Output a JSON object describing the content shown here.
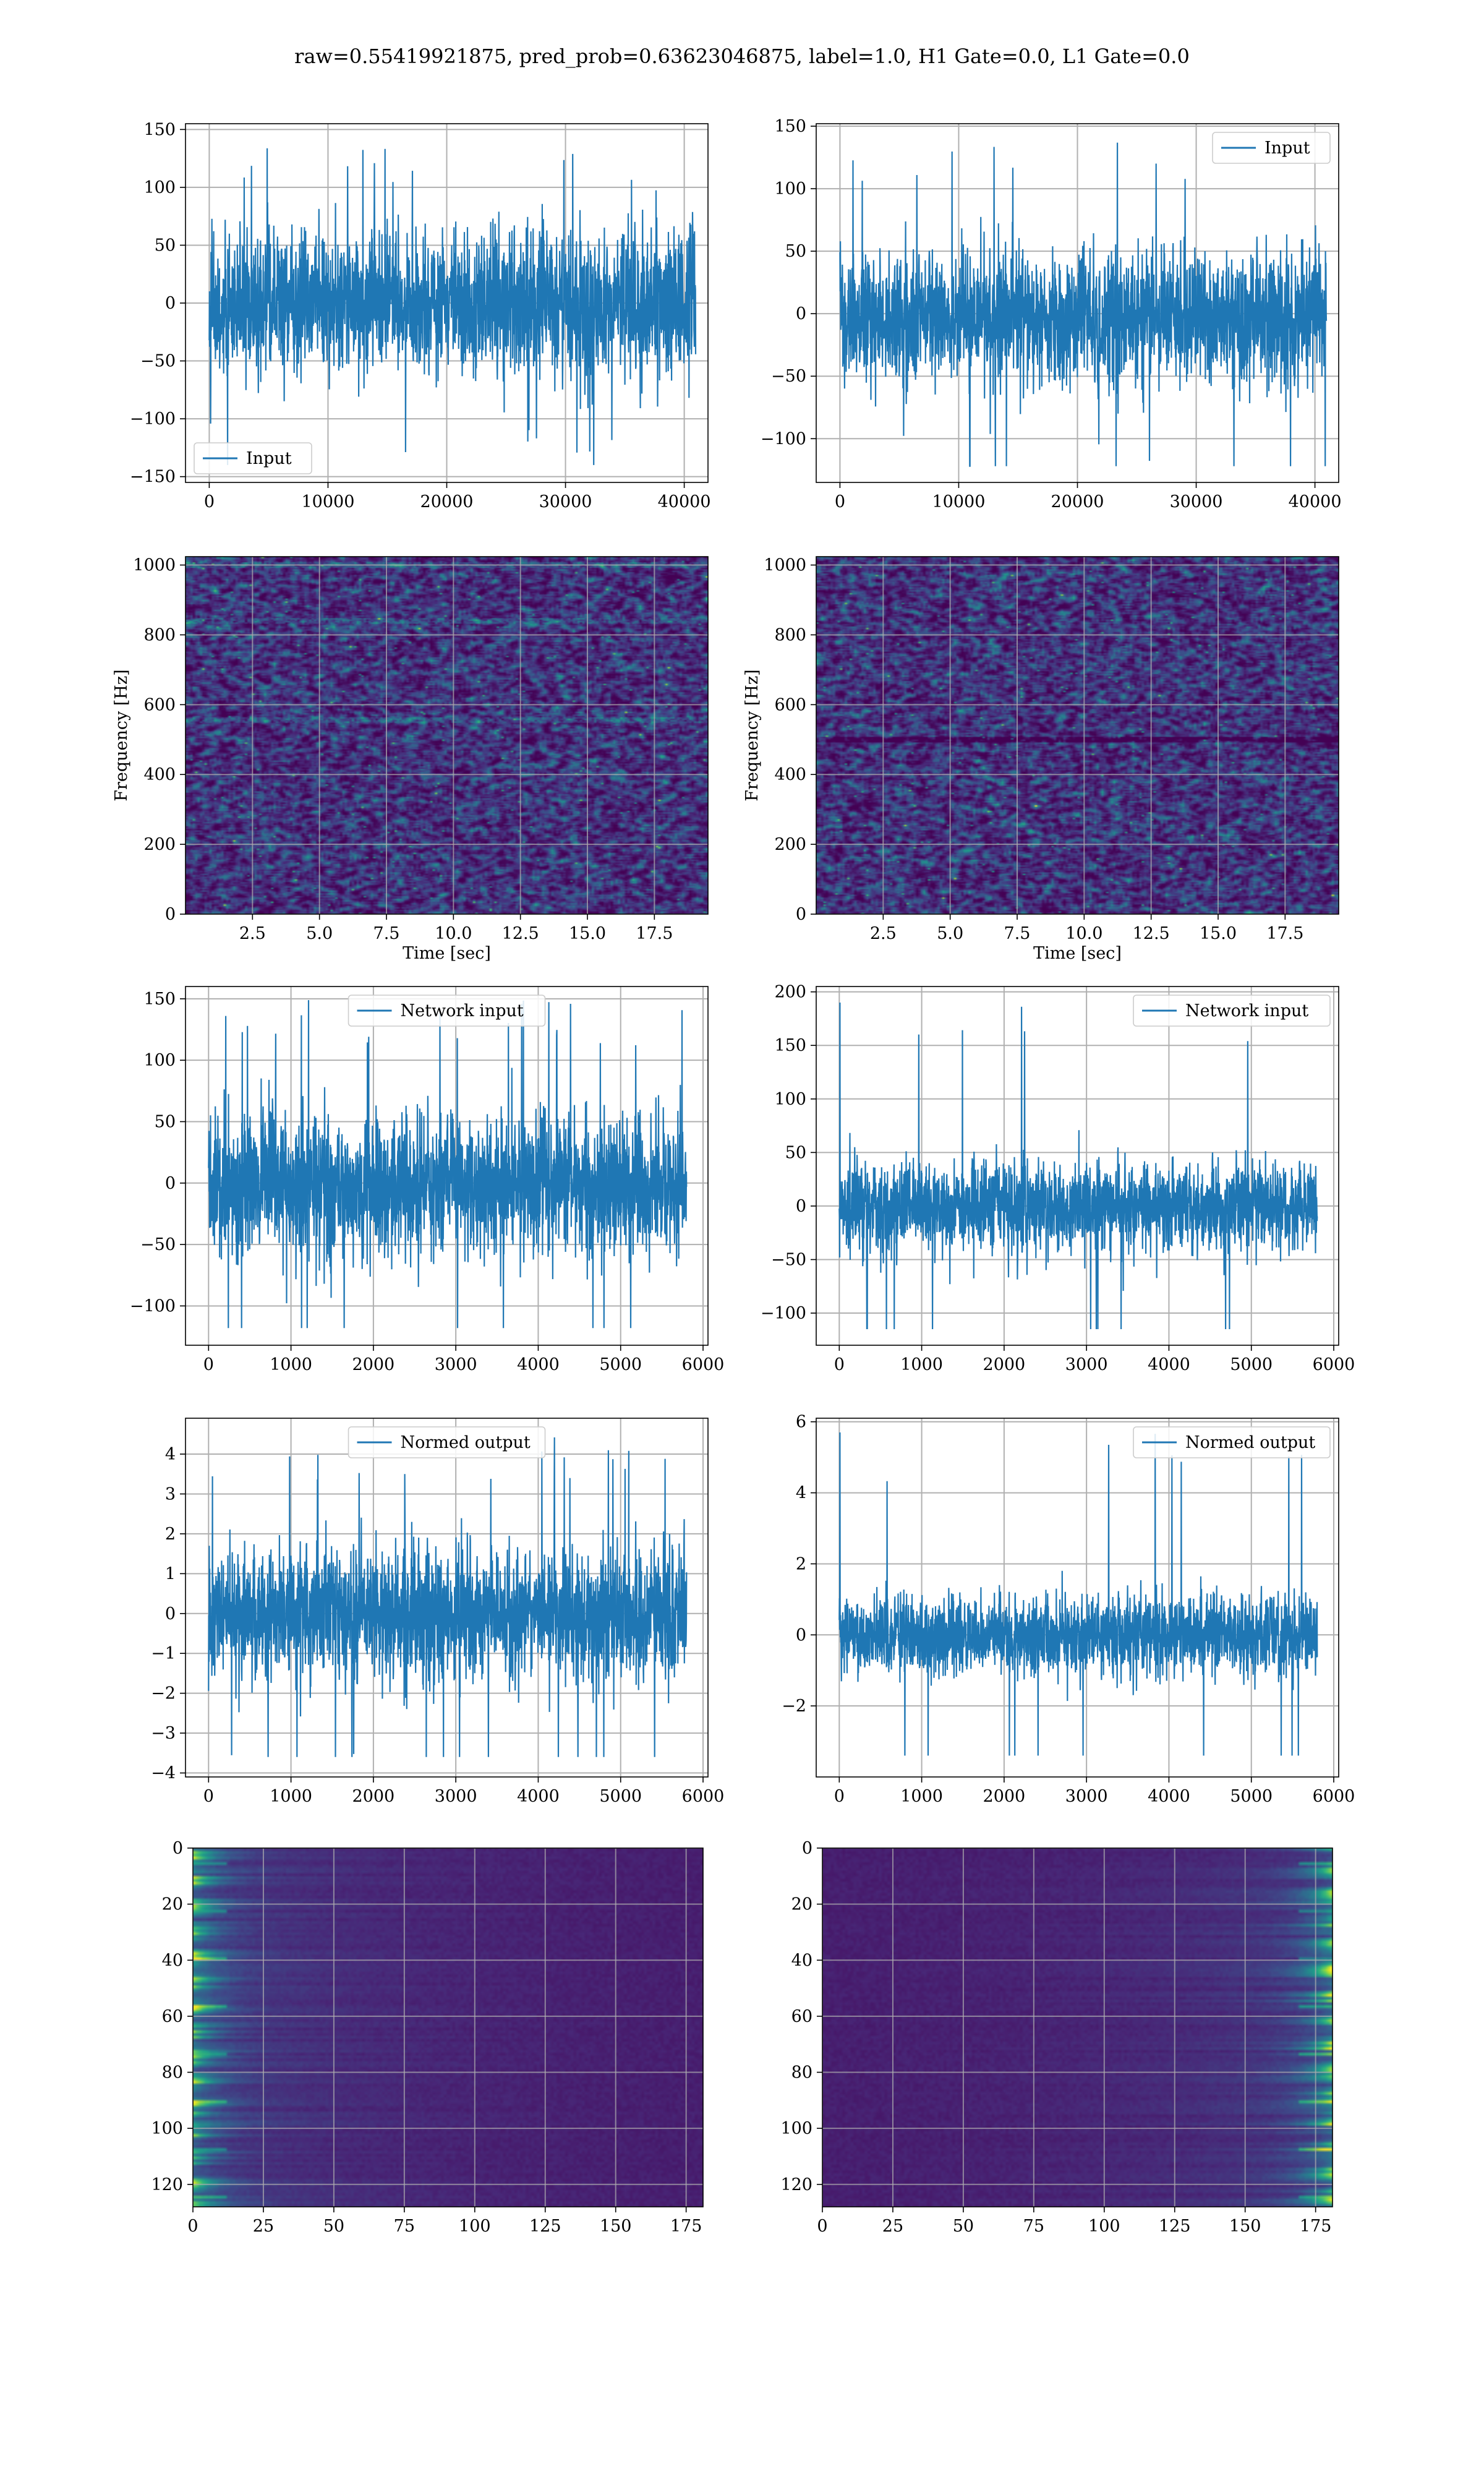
{
  "figure": {
    "title": "raw=0.55419921875, pred_prob=0.63623046875, label=1.0, H1 Gate=0.0, L1 Gate=0.0",
    "line_color": "#1f77b4",
    "grid_color": "#b0b0b0",
    "colormap": "viridis"
  },
  "chart_data": [
    {
      "id": "h1-input",
      "type": "line",
      "title": "",
      "xlabel": "",
      "ylabel": "",
      "xlim": [
        -2000,
        42000
      ],
      "ylim": [
        -155,
        155
      ],
      "xticks": [
        0,
        10000,
        20000,
        30000,
        40000
      ],
      "yticks": [
        -150,
        -100,
        -50,
        0,
        50,
        100,
        150
      ],
      "xtick_labels": [
        "0",
        "10000",
        "20000",
        "30000",
        "40000"
      ],
      "ytick_labels": [
        "−150",
        "−100",
        "−50",
        "0",
        "50",
        "100",
        "150"
      ],
      "legend": {
        "entries": [
          "Input"
        ],
        "placement": "lower-left"
      },
      "series": [
        {
          "name": "Input",
          "n_samples": 40960,
          "x_range": [
            0,
            40960
          ],
          "typical_band": [
            -80,
            75
          ],
          "extremes": [
            -140,
            137
          ]
        }
      ],
      "grid": true
    },
    {
      "id": "l1-input",
      "type": "line",
      "title": "",
      "xlabel": "",
      "ylabel": "",
      "xlim": [
        -2000,
        42000
      ],
      "ylim": [
        -135,
        152
      ],
      "xticks": [
        0,
        10000,
        20000,
        30000,
        40000
      ],
      "yticks": [
        -100,
        -50,
        0,
        50,
        100,
        150
      ],
      "xtick_labels": [
        "0",
        "10000",
        "20000",
        "30000",
        "40000"
      ],
      "ytick_labels": [
        "−100",
        "−50",
        "0",
        "50",
        "100",
        "150"
      ],
      "legend": {
        "entries": [
          "Input"
        ],
        "placement": "upper-right"
      },
      "series": [
        {
          "name": "Input",
          "n_samples": 40960,
          "x_range": [
            0,
            40960
          ],
          "typical_band": [
            -70,
            65
          ],
          "extremes": [
            -122,
            138
          ]
        }
      ],
      "grid": true
    },
    {
      "id": "h1-spectrogram",
      "type": "heatmap",
      "title": "",
      "xlabel": "Time [sec]",
      "ylabel": "Frequency [Hz]",
      "xlim": [
        0,
        19.5
      ],
      "ylim": [
        0,
        1024
      ],
      "xticks": [
        2.5,
        5.0,
        7.5,
        10.0,
        12.5,
        15.0,
        17.5
      ],
      "yticks": [
        0,
        200,
        400,
        600,
        800,
        1000
      ],
      "xtick_labels": [
        "2.5",
        "5.0",
        "7.5",
        "10.0",
        "12.5",
        "15.0",
        "17.5"
      ],
      "ytick_labels": [
        "0",
        "200",
        "400",
        "600",
        "800",
        "1000"
      ],
      "bright_bands_hz": [
        840,
        555,
        1000
      ],
      "dark_bands_hz": [],
      "grid": true
    },
    {
      "id": "l1-spectrogram",
      "type": "heatmap",
      "title": "",
      "xlabel": "Time [sec]",
      "ylabel": "Frequency [Hz]",
      "xlim": [
        0,
        19.5
      ],
      "ylim": [
        0,
        1024
      ],
      "xticks": [
        2.5,
        5.0,
        7.5,
        10.0,
        12.5,
        15.0,
        17.5
      ],
      "yticks": [
        0,
        200,
        400,
        600,
        800,
        1000
      ],
      "xtick_labels": [
        "2.5",
        "5.0",
        "7.5",
        "10.0",
        "12.5",
        "15.0",
        "17.5"
      ],
      "ytick_labels": [
        "0",
        "200",
        "400",
        "600",
        "800",
        "1000"
      ],
      "bright_bands_hz": [],
      "dark_bands_hz": [
        500
      ],
      "grid": true
    },
    {
      "id": "h1-network-input",
      "type": "line",
      "title": "",
      "xlabel": "",
      "ylabel": "",
      "xlim": [
        -280,
        6060
      ],
      "ylim": [
        -132,
        160
      ],
      "xticks": [
        0,
        1000,
        2000,
        3000,
        4000,
        5000,
        6000
      ],
      "yticks": [
        -100,
        -50,
        0,
        50,
        100,
        150
      ],
      "xtick_labels": [
        "0",
        "1000",
        "2000",
        "3000",
        "4000",
        "5000",
        "6000"
      ],
      "ytick_labels": [
        "−100",
        "−50",
        "0",
        "50",
        "100",
        "150"
      ],
      "legend": {
        "entries": [
          "Network input"
        ],
        "placement": "upper-center"
      },
      "series": [
        {
          "name": "Network input",
          "n_samples": 5800,
          "x_range": [
            0,
            5800
          ],
          "typical_band": [
            -70,
            65
          ],
          "extremes": [
            -118,
            150
          ]
        }
      ],
      "grid": true
    },
    {
      "id": "l1-network-input",
      "type": "line",
      "title": "",
      "xlabel": "",
      "ylabel": "",
      "xlim": [
        -280,
        6060
      ],
      "ylim": [
        -130,
        205
      ],
      "xticks": [
        0,
        1000,
        2000,
        3000,
        4000,
        5000,
        6000
      ],
      "yticks": [
        -100,
        -50,
        0,
        50,
        100,
        150,
        200
      ],
      "xtick_labels": [
        "0",
        "1000",
        "2000",
        "3000",
        "4000",
        "5000",
        "6000"
      ],
      "ytick_labels": [
        "−100",
        "−50",
        "0",
        "50",
        "100",
        "150",
        "200"
      ],
      "legend": {
        "entries": [
          "Network input"
        ],
        "placement": "upper-right"
      },
      "series": [
        {
          "name": "Network input",
          "n_samples": 5800,
          "x_range": [
            0,
            5800
          ],
          "typical_band": [
            -55,
            50
          ],
          "extremes": [
            -115,
            190
          ],
          "spike_near_x": 0
        }
      ],
      "grid": true
    },
    {
      "id": "h1-normed-output",
      "type": "line",
      "title": "",
      "xlabel": "",
      "ylabel": "",
      "xlim": [
        -280,
        6060
      ],
      "ylim": [
        -4.1,
        4.9
      ],
      "xticks": [
        0,
        1000,
        2000,
        3000,
        4000,
        5000,
        6000
      ],
      "yticks": [
        -4,
        -3,
        -2,
        -1,
        0,
        1,
        2,
        3,
        4
      ],
      "xtick_labels": [
        "0",
        "1000",
        "2000",
        "3000",
        "4000",
        "5000",
        "6000"
      ],
      "ytick_labels": [
        "−4",
        "−3",
        "−2",
        "−1",
        "0",
        "1",
        "2",
        "3",
        "4"
      ],
      "legend": {
        "entries": [
          "Normed output"
        ],
        "placement": "upper-center"
      },
      "series": [
        {
          "name": "Normed output",
          "n_samples": 5800,
          "x_range": [
            0,
            5800
          ],
          "typical_band": [
            -2.0,
            1.9
          ],
          "extremes": [
            -3.6,
            4.5
          ]
        }
      ],
      "grid": true
    },
    {
      "id": "l1-normed-output",
      "type": "line",
      "title": "",
      "xlabel": "",
      "ylabel": "",
      "xlim": [
        -280,
        6060
      ],
      "ylim": [
        -4.0,
        6.1
      ],
      "xticks": [
        0,
        1000,
        2000,
        3000,
        4000,
        5000,
        6000
      ],
      "yticks": [
        -2,
        0,
        2,
        4,
        6
      ],
      "xtick_labels": [
        "0",
        "1000",
        "2000",
        "3000",
        "4000",
        "5000",
        "6000"
      ],
      "ytick_labels": [
        "−2",
        "0",
        "2",
        "4",
        "6"
      ],
      "legend": {
        "entries": [
          "Normed output"
        ],
        "placement": "upper-right"
      },
      "series": [
        {
          "name": "Normed output",
          "n_samples": 5800,
          "x_range": [
            0,
            5800
          ],
          "typical_band": [
            -1.4,
            1.4
          ],
          "extremes": [
            -3.4,
            5.7
          ],
          "spike_near_x": 0
        }
      ],
      "grid": true
    },
    {
      "id": "h1-feature-map",
      "type": "heatmap",
      "title": "",
      "xlabel": "",
      "ylabel": "",
      "xlim": [
        0,
        181
      ],
      "ylim": [
        128,
        0
      ],
      "y_inverted": true,
      "xticks": [
        0,
        25,
        50,
        75,
        100,
        125,
        150,
        175
      ],
      "yticks": [
        0,
        20,
        40,
        60,
        80,
        100,
        120
      ],
      "xtick_labels": [
        "0",
        "25",
        "50",
        "75",
        "100",
        "125",
        "150",
        "175"
      ],
      "ytick_labels": [
        "0",
        "20",
        "40",
        "60",
        "80",
        "100",
        "120"
      ],
      "bright_side": "left",
      "grid": true
    },
    {
      "id": "l1-feature-map",
      "type": "heatmap",
      "title": "",
      "xlabel": "",
      "ylabel": "",
      "xlim": [
        0,
        181
      ],
      "ylim": [
        128,
        0
      ],
      "y_inverted": true,
      "xticks": [
        0,
        25,
        50,
        75,
        100,
        125,
        150,
        175
      ],
      "yticks": [
        0,
        20,
        40,
        60,
        80,
        100,
        120
      ],
      "xtick_labels": [
        "0",
        "25",
        "50",
        "75",
        "100",
        "125",
        "150",
        "175"
      ],
      "ytick_labels": [
        "0",
        "20",
        "40",
        "60",
        "80",
        "100",
        "120"
      ],
      "bright_side": "right",
      "grid": true
    }
  ]
}
